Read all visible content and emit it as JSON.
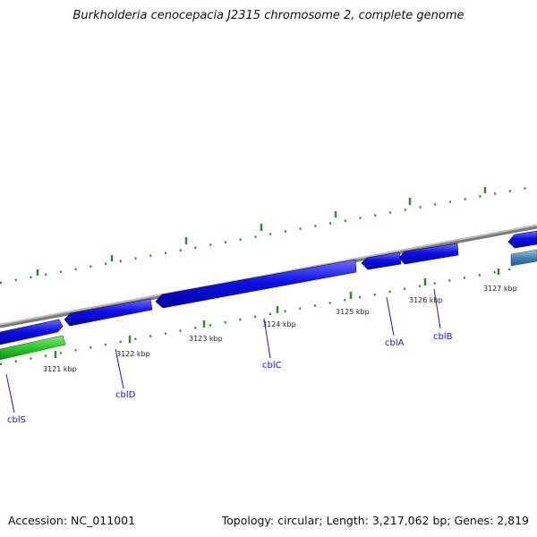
{
  "title": "Burkholderia cenocepacia J2315 chromosome 2, complete genome",
  "footer": {
    "accession": "Accession: NC_011001",
    "stats": "Topology: circular; Length: 3,217,062 bp; Genes: 2,819"
  },
  "ticks": [
    "3121 kbp",
    "3122 kbp",
    "3123 kbp",
    "3124 kbp",
    "3125 kbp",
    "3126 kbp",
    "3127 kbp"
  ],
  "genes": [
    "cblS",
    "cblD",
    "cblC",
    "cblA",
    "cblB"
  ],
  "colors": {
    "backbone": "#808080",
    "forward_gene": "#1010e8",
    "reverse_gene": "#33cc33",
    "other_feature": "#4682b4",
    "gc_marks": "#2e8b2e",
    "label": "#1a1ab8"
  }
}
